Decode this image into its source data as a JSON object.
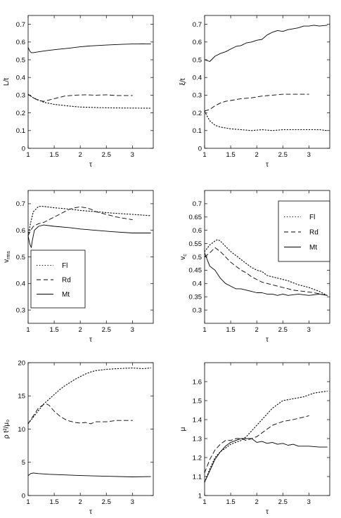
{
  "chart_data": [
    {
      "type": "line",
      "xlabel": "τ",
      "ylabel": "L/t",
      "xlim": [
        1,
        3.4
      ],
      "ylim": [
        0,
        0.75
      ],
      "xticks": [
        1,
        1.5,
        2,
        2.5,
        3
      ],
      "xtick_labels": [
        "1",
        "1.5",
        "2",
        "2.5",
        "3"
      ],
      "yticks": [
        0,
        0.1,
        0.2,
        0.3,
        0.4,
        0.5,
        0.6,
        0.7
      ],
      "ytick_labels": [
        "0",
        "0.1",
        "0.2",
        "0.3",
        "0.4",
        "0.5",
        "0.6",
        "0.7"
      ],
      "series": [
        {
          "style": "solid",
          "x": [
            1.0,
            1.03,
            1.06,
            1.1,
            1.2,
            1.4,
            1.6,
            1.8,
            2.0,
            2.2,
            2.5,
            2.8,
            3.0,
            3.2,
            3.35
          ],
          "y": [
            0.57,
            0.55,
            0.54,
            0.54,
            0.545,
            0.553,
            0.56,
            0.566,
            0.573,
            0.578,
            0.583,
            0.587,
            0.589,
            0.59,
            0.589
          ]
        },
        {
          "style": "dotted",
          "x": [
            1.0,
            1.1,
            1.3,
            1.5,
            1.8,
            2.0,
            2.3,
            2.6,
            3.0,
            3.35
          ],
          "y": [
            0.305,
            0.285,
            0.26,
            0.248,
            0.238,
            0.233,
            0.23,
            0.228,
            0.227,
            0.226
          ]
        },
        {
          "style": "dashed",
          "x": [
            1.0,
            1.1,
            1.2,
            1.3,
            1.5,
            1.7,
            1.9,
            2.1,
            2.3,
            2.5,
            2.7,
            3.0
          ],
          "y": [
            0.305,
            0.285,
            0.27,
            0.265,
            0.28,
            0.295,
            0.3,
            0.302,
            0.3,
            0.302,
            0.298,
            0.298
          ]
        }
      ]
    },
    {
      "type": "line",
      "xlabel": "τ",
      "ylabel": "ξ/t",
      "xlim": [
        1,
        3.4
      ],
      "ylim": [
        0,
        0.75
      ],
      "xticks": [
        1,
        1.5,
        2,
        2.5,
        3
      ],
      "xtick_labels": [
        "1",
        "1.5",
        "2",
        "2.5",
        "3"
      ],
      "yticks": [
        0,
        0.1,
        0.2,
        0.3,
        0.4,
        0.5,
        0.6,
        0.7
      ],
      "ytick_labels": [
        "0",
        "0.1",
        "0.2",
        "0.3",
        "0.4",
        "0.5",
        "0.6",
        "0.7"
      ],
      "series": [
        {
          "style": "solid",
          "x": [
            1.0,
            1.1,
            1.2,
            1.3,
            1.4,
            1.5,
            1.6,
            1.7,
            1.8,
            1.9,
            2.0,
            2.1,
            2.2,
            2.3,
            2.4,
            2.5,
            2.6,
            2.7,
            2.8,
            2.9,
            3.0,
            3.1,
            3.2,
            3.35
          ],
          "y": [
            0.5,
            0.49,
            0.52,
            0.535,
            0.545,
            0.56,
            0.575,
            0.58,
            0.595,
            0.6,
            0.61,
            0.615,
            0.64,
            0.655,
            0.665,
            0.66,
            0.67,
            0.675,
            0.68,
            0.69,
            0.69,
            0.695,
            0.69,
            0.695
          ]
        },
        {
          "style": "dashed",
          "x": [
            1.0,
            1.1,
            1.2,
            1.3,
            1.4,
            1.5,
            1.7,
            1.9,
            2.1,
            2.3,
            2.5,
            2.7,
            3.0
          ],
          "y": [
            0.21,
            0.22,
            0.24,
            0.255,
            0.265,
            0.27,
            0.28,
            0.285,
            0.295,
            0.3,
            0.305,
            0.305,
            0.305
          ]
        },
        {
          "style": "dotted",
          "x": [
            1.0,
            1.05,
            1.1,
            1.2,
            1.3,
            1.5,
            1.7,
            1.9,
            2.1,
            2.3,
            2.5,
            2.8,
            3.0,
            3.2,
            3.35
          ],
          "y": [
            0.21,
            0.18,
            0.155,
            0.13,
            0.12,
            0.11,
            0.105,
            0.1,
            0.105,
            0.1,
            0.105,
            0.105,
            0.105,
            0.105,
            0.1
          ]
        }
      ]
    },
    {
      "type": "line",
      "xlabel": "τ",
      "ylabel": "v_rms",
      "xlim": [
        1,
        3.4
      ],
      "ylim": [
        0.25,
        0.75
      ],
      "xticks": [
        1,
        1.5,
        2,
        2.5,
        3
      ],
      "xtick_labels": [
        "1",
        "1.5",
        "2",
        "2.5",
        "3"
      ],
      "yticks": [
        0.3,
        0.4,
        0.5,
        0.6,
        0.7
      ],
      "ytick_labels": [
        "0.3",
        "0.4",
        "0.5",
        "0.6",
        "0.7"
      ],
      "legend": "lower-left",
      "series": [
        {
          "name": "Fl",
          "style": "dotted",
          "x": [
            1.0,
            1.05,
            1.1,
            1.2,
            1.3,
            1.5,
            1.8,
            2.0,
            2.3,
            2.6,
            3.0,
            3.35
          ],
          "y": [
            0.58,
            0.63,
            0.67,
            0.69,
            0.69,
            0.685,
            0.68,
            0.675,
            0.67,
            0.665,
            0.66,
            0.655
          ]
        },
        {
          "name": "Rd",
          "style": "dashed",
          "x": [
            1.0,
            1.05,
            1.1,
            1.2,
            1.3,
            1.4,
            1.5,
            1.6,
            1.7,
            1.8,
            1.9,
            2.0,
            2.1,
            2.2,
            2.3,
            2.5,
            2.7,
            3.0
          ],
          "y": [
            0.58,
            0.6,
            0.615,
            0.625,
            0.63,
            0.64,
            0.65,
            0.66,
            0.67,
            0.68,
            0.685,
            0.688,
            0.685,
            0.68,
            0.67,
            0.66,
            0.65,
            0.64
          ]
        },
        {
          "name": "Mt",
          "style": "solid",
          "x": [
            1.0,
            1.03,
            1.06,
            1.08,
            1.12,
            1.2,
            1.3,
            1.5,
            1.8,
            2.0,
            2.3,
            2.6,
            3.0,
            3.35
          ],
          "y": [
            0.58,
            0.55,
            0.535,
            0.56,
            0.6,
            0.615,
            0.62,
            0.615,
            0.61,
            0.605,
            0.6,
            0.595,
            0.59,
            0.59
          ]
        }
      ]
    },
    {
      "type": "line",
      "xlabel": "τ",
      "ylabel": "v_c",
      "xlim": [
        1,
        3.4
      ],
      "ylim": [
        0.25,
        0.75
      ],
      "xticks": [
        1,
        1.5,
        2,
        2.5,
        3
      ],
      "xtick_labels": [
        "1",
        "1.5",
        "2",
        "2.5",
        "3"
      ],
      "yticks": [
        0.3,
        0.35,
        0.4,
        0.45,
        0.5,
        0.55,
        0.6,
        0.65,
        0.7
      ],
      "ytick_labels": [
        "0.3",
        "0.35",
        "0.4",
        "0.45",
        "0.5",
        "0.55",
        "0.6",
        "0.65",
        "0.7"
      ],
      "legend": "top-right",
      "series": [
        {
          "name": "Fl",
          "style": "dotted",
          "x": [
            1.0,
            1.1,
            1.2,
            1.25,
            1.3,
            1.4,
            1.5,
            1.6,
            1.7,
            1.8,
            1.9,
            2.0,
            2.1,
            2.2,
            2.3,
            2.4,
            2.5,
            2.6,
            2.8,
            3.0,
            3.2,
            3.35
          ],
          "y": [
            0.52,
            0.545,
            0.56,
            0.565,
            0.56,
            0.54,
            0.52,
            0.505,
            0.49,
            0.475,
            0.46,
            0.45,
            0.445,
            0.43,
            0.425,
            0.42,
            0.415,
            0.41,
            0.395,
            0.385,
            0.37,
            0.355
          ]
        },
        {
          "name": "Rd",
          "style": "dashed",
          "x": [
            1.0,
            1.1,
            1.2,
            1.3,
            1.4,
            1.5,
            1.6,
            1.7,
            1.8,
            1.9,
            2.0,
            2.1,
            2.2,
            2.3,
            2.4,
            2.5,
            2.7,
            2.9,
            3.1,
            3.35
          ],
          "y": [
            0.5,
            0.515,
            0.535,
            0.52,
            0.5,
            0.48,
            0.465,
            0.45,
            0.44,
            0.425,
            0.415,
            0.405,
            0.4,
            0.395,
            0.39,
            0.385,
            0.375,
            0.37,
            0.365,
            0.355
          ]
        },
        {
          "name": "Mt",
          "style": "solid",
          "x": [
            1.0,
            1.05,
            1.1,
            1.2,
            1.3,
            1.4,
            1.5,
            1.6,
            1.7,
            1.8,
            1.9,
            2.0,
            2.1,
            2.2,
            2.3,
            2.4,
            2.5,
            2.6,
            2.8,
            3.0,
            3.2,
            3.35
          ],
          "y": [
            0.515,
            0.49,
            0.465,
            0.45,
            0.42,
            0.4,
            0.39,
            0.38,
            0.38,
            0.375,
            0.37,
            0.365,
            0.365,
            0.36,
            0.36,
            0.355,
            0.36,
            0.355,
            0.36,
            0.355,
            0.36,
            0.355
          ]
        }
      ]
    },
    {
      "type": "line",
      "xlabel": "τ",
      "ylabel": "ρ t²/μ₀",
      "xlim": [
        1,
        3.4
      ],
      "ylim": [
        0,
        20
      ],
      "xticks": [
        1,
        1.5,
        2,
        2.5,
        3
      ],
      "xtick_labels": [
        "1",
        "1.5",
        "2",
        "2.5",
        "3"
      ],
      "yticks": [
        0,
        5,
        10,
        15,
        20
      ],
      "ytick_labels": [
        "0",
        "5",
        "10",
        "15",
        "20"
      ],
      "series": [
        {
          "style": "dotted",
          "x": [
            1.0,
            1.1,
            1.2,
            1.3,
            1.4,
            1.5,
            1.6,
            1.7,
            1.8,
            1.9,
            2.0,
            2.1,
            2.2,
            2.3,
            2.4,
            2.5,
            2.7,
            3.0,
            3.2,
            3.35
          ],
          "y": [
            10.8,
            11.8,
            12.8,
            13.8,
            14.5,
            15.2,
            15.9,
            16.5,
            17.0,
            17.5,
            17.9,
            18.3,
            18.6,
            18.8,
            18.9,
            19.0,
            19.1,
            19.2,
            19.1,
            19.2
          ]
        },
        {
          "style": "dashed",
          "x": [
            1.0,
            1.1,
            1.2,
            1.3,
            1.35,
            1.4,
            1.5,
            1.6,
            1.7,
            1.8,
            1.9,
            2.0,
            2.1,
            2.2,
            2.3,
            2.5,
            2.7,
            3.0
          ],
          "y": [
            10.8,
            12.0,
            13.2,
            13.7,
            13.8,
            13.6,
            12.7,
            12.0,
            11.5,
            11.2,
            11.0,
            10.9,
            11.0,
            10.8,
            11.1,
            11.1,
            11.3,
            11.3
          ]
        },
        {
          "style": "solid",
          "x": [
            1.0,
            1.05,
            1.1,
            1.2,
            1.4,
            1.7,
            2.0,
            2.5,
            3.0,
            3.35
          ],
          "y": [
            3.0,
            3.3,
            3.4,
            3.3,
            3.2,
            3.1,
            3.0,
            2.9,
            2.8,
            2.85
          ]
        }
      ]
    },
    {
      "type": "line",
      "xlabel": "τ",
      "ylabel": "μ",
      "xlim": [
        1,
        3.4
      ],
      "ylim": [
        1,
        1.7
      ],
      "xticks": [
        1,
        1.5,
        2,
        2.5,
        3
      ],
      "xtick_labels": [
        "1",
        "1.5",
        "2",
        "2.5",
        "3"
      ],
      "yticks": [
        1,
        1.1,
        1.2,
        1.3,
        1.4,
        1.5,
        1.6
      ],
      "ytick_labels": [
        "1",
        "1.1",
        "1.2",
        "1.3",
        "1.4",
        "1.5",
        "1.6"
      ],
      "series": [
        {
          "style": "dotted",
          "x": [
            1.0,
            1.1,
            1.2,
            1.3,
            1.4,
            1.5,
            1.6,
            1.7,
            1.8,
            1.9,
            2.0,
            2.1,
            2.2,
            2.3,
            2.4,
            2.5,
            2.7,
            2.9,
            3.1,
            3.35
          ],
          "y": [
            1.07,
            1.14,
            1.2,
            1.23,
            1.25,
            1.27,
            1.28,
            1.29,
            1.31,
            1.34,
            1.37,
            1.4,
            1.43,
            1.46,
            1.48,
            1.5,
            1.51,
            1.52,
            1.54,
            1.55
          ]
        },
        {
          "style": "dashed",
          "x": [
            1.0,
            1.1,
            1.2,
            1.3,
            1.4,
            1.5,
            1.6,
            1.7,
            1.8,
            1.9,
            2.0,
            2.1,
            2.2,
            2.3,
            2.5,
            2.7,
            3.0
          ],
          "y": [
            1.12,
            1.19,
            1.24,
            1.27,
            1.29,
            1.29,
            1.3,
            1.3,
            1.29,
            1.3,
            1.31,
            1.33,
            1.35,
            1.37,
            1.39,
            1.4,
            1.42
          ]
        },
        {
          "style": "solid",
          "x": [
            1.0,
            1.1,
            1.2,
            1.3,
            1.4,
            1.5,
            1.6,
            1.7,
            1.8,
            1.9,
            2.0,
            2.1,
            2.2,
            2.3,
            2.4,
            2.5,
            2.6,
            2.7,
            2.8,
            3.0,
            3.2,
            3.35
          ],
          "y": [
            1.07,
            1.13,
            1.19,
            1.23,
            1.26,
            1.28,
            1.29,
            1.3,
            1.3,
            1.3,
            1.28,
            1.285,
            1.275,
            1.28,
            1.27,
            1.275,
            1.265,
            1.27,
            1.26,
            1.26,
            1.255,
            1.255
          ]
        }
      ]
    }
  ]
}
